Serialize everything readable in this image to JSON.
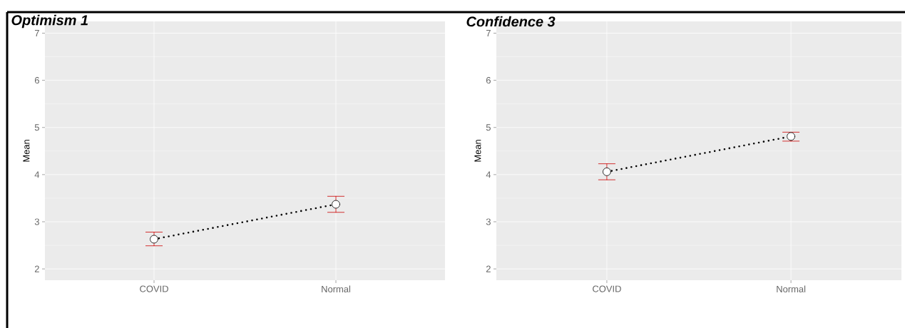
{
  "chart_data": [
    {
      "type": "line",
      "title": "Optimism 1",
      "ylabel": "Mean",
      "categories": [
        "COVID",
        "Normal"
      ],
      "series": [
        {
          "color": "#000000",
          "values": [
            2.63,
            3.37
          ],
          "errors": [
            [
              2.49,
              2.78
            ],
            [
              3.2,
              3.54
            ]
          ]
        }
      ],
      "ylim": [
        1.76,
        7.25
      ],
      "yticks": [
        2,
        3,
        4,
        5,
        6,
        7
      ],
      "grid": true,
      "marker": "circle",
      "line_style": "dotted"
    },
    {
      "type": "line",
      "title": "Confidence 3",
      "ylabel": "Mean",
      "categories": [
        "COVID",
        "Normal"
      ],
      "series": [
        {
          "color": "#000000",
          "values": [
            4.06,
            4.81
          ],
          "errors": [
            [
              3.89,
              4.23
            ],
            [
              4.71,
              4.9
            ]
          ]
        }
      ],
      "ylim": [
        1.76,
        7.25
      ],
      "yticks": [
        2,
        3,
        4,
        5,
        6,
        7
      ],
      "grid": true,
      "marker": "circle",
      "line_style": "dotted"
    }
  ]
}
